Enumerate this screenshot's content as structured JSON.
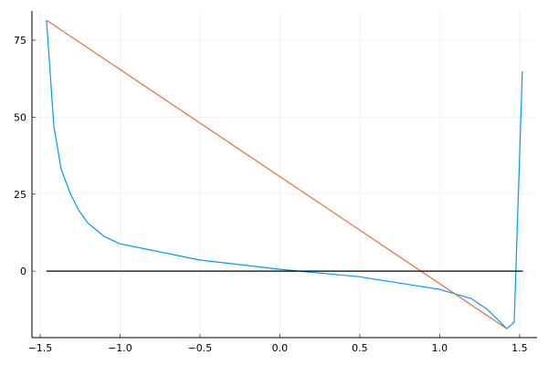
{
  "chart_data": {
    "type": "line",
    "grid": true,
    "xlim": [
      -1.551,
      1.609
    ],
    "ylim": [
      -21.6,
      84.5
    ],
    "xticks": [
      {
        "value": -1.5,
        "label": "−1.5"
      },
      {
        "value": -1,
        "label": "−1.0"
      },
      {
        "value": -0.5,
        "label": "−0.5"
      },
      {
        "value": 0,
        "label": "0.0"
      },
      0.5,
      {
        "value": 1,
        "label": "1.0"
      },
      1.5
    ],
    "yticks": [
      0,
      25,
      50,
      75
    ],
    "series": [
      {
        "color": "#009af9",
        "x": [
          -1.46,
          -1.414,
          -1.369,
          -1.311,
          -1.26,
          -1.203,
          -1.1,
          -1.003,
          -0.5,
          0,
          0.494,
          0.997,
          1.197,
          1.3,
          1.42,
          1.466,
          1.517
        ],
        "values": [
          81.5,
          47.1,
          33.2,
          25.2,
          19.9,
          15.7,
          11.3,
          8.9,
          3.6,
          0.6,
          -1.8,
          -5.9,
          -8.9,
          -12.5,
          -18.7,
          -16.6,
          64.9
        ]
      },
      {
        "color": "#e26f46",
        "x": [
          -1.46,
          1.42
        ],
        "values": [
          81.5,
          -18.7
        ]
      },
      {
        "color": "#000000",
        "x": [
          -1.46,
          1.52
        ],
        "values": [
          0,
          0
        ]
      }
    ]
  }
}
